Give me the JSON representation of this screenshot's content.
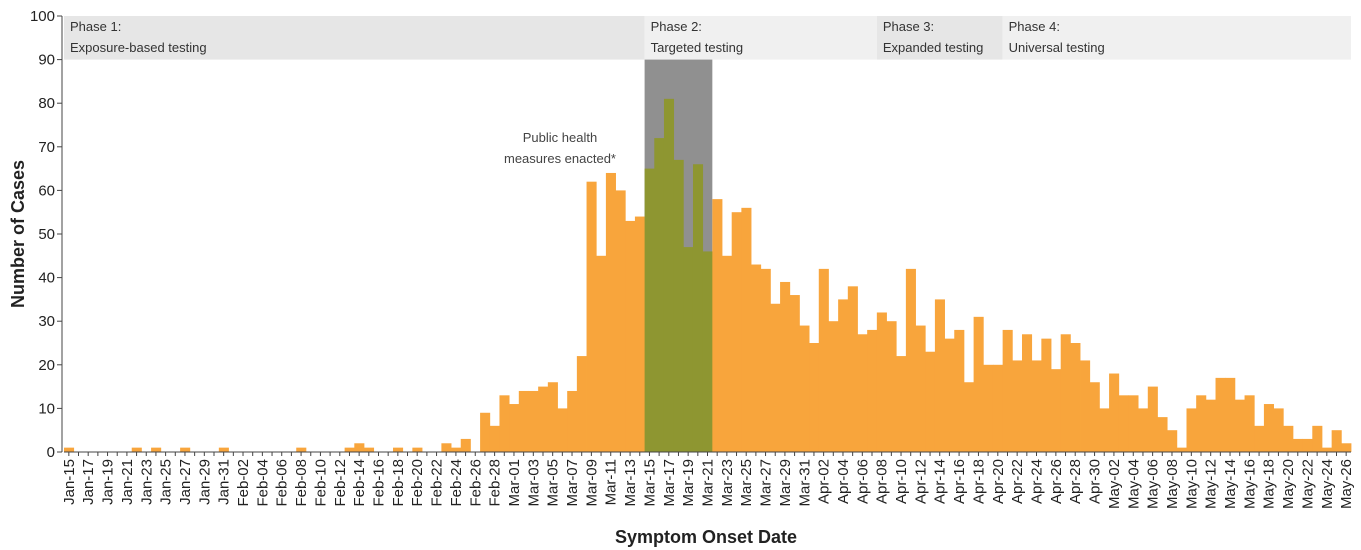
{
  "chart_data": {
    "type": "bar",
    "x_label": "Symptom Onset Date",
    "y_label": "Number of Cases",
    "color": "#f8a53c",
    "categories": [
      "Jan-15",
      null,
      "Jan-17",
      null,
      "Jan-19",
      null,
      "Jan-21",
      null,
      "Jan-23",
      null,
      "Jan-25",
      null,
      "Jan-27",
      null,
      "Jan-29",
      null,
      "Jan-31",
      null,
      "Feb-02",
      null,
      "Feb-04",
      null,
      "Feb-06",
      null,
      "Feb-08",
      null,
      "Feb-10",
      null,
      "Feb-12",
      null,
      "Feb-14",
      null,
      "Feb-16",
      null,
      "Feb-18",
      null,
      "Feb-20",
      null,
      "Feb-22",
      null,
      "Feb-24",
      null,
      "Feb-26",
      null,
      "Feb-28",
      null,
      "Mar-01",
      null,
      "Mar-03",
      null,
      "Mar-05",
      null,
      "Mar-07",
      null,
      "Mar-09",
      null,
      "Mar-11",
      null,
      "Mar-13",
      null,
      "Mar-15",
      null,
      "Mar-17",
      null,
      "Mar-19",
      null,
      "Mar-21",
      null,
      "Mar-23",
      null,
      "Mar-25",
      null,
      "Mar-27",
      null,
      "Mar-29",
      null,
      "Mar-31",
      null,
      "Apr-02",
      null,
      "Apr-04",
      null,
      "Apr-06",
      null,
      "Apr-08",
      null,
      "Apr-10",
      null,
      "Apr-12",
      null,
      "Apr-14",
      null,
      "Apr-16",
      null,
      "Apr-18",
      null,
      "Apr-20",
      null,
      "Apr-22",
      null,
      "Apr-24",
      null,
      "Apr-26",
      null,
      "Apr-28",
      null,
      "Apr-30",
      null,
      "May-02",
      null,
      "May-04",
      null,
      "May-06",
      null,
      "May-08",
      null,
      "May-10",
      null,
      "May-12",
      null,
      "May-14",
      null,
      "May-16",
      null,
      "May-18",
      null,
      "May-20",
      null,
      "May-22",
      null,
      "May-24",
      null,
      "May-26"
    ],
    "values": [
      1,
      0,
      0,
      0,
      0,
      0,
      0,
      1,
      0,
      1,
      0,
      0,
      1,
      0,
      0,
      0,
      1,
      0,
      0,
      0,
      0,
      0,
      0,
      0,
      1,
      0,
      0,
      0,
      0,
      1,
      2,
      1,
      0,
      0,
      1,
      0,
      1,
      0,
      0,
      2,
      1,
      3,
      0,
      9,
      6,
      13,
      11,
      14,
      14,
      15,
      16,
      10,
      14,
      22,
      62,
      45,
      64,
      60,
      53,
      54,
      65,
      72,
      81,
      67,
      47,
      66,
      46,
      58,
      45,
      55,
      56,
      43,
      42,
      34,
      39,
      36,
      29,
      25,
      42,
      30,
      35,
      38,
      27,
      28,
      32,
      30,
      22,
      42,
      29,
      23,
      35,
      26,
      28,
      16,
      31,
      20,
      20,
      28,
      21,
      27,
      21,
      26,
      19,
      27,
      25,
      21,
      16,
      10,
      18,
      13,
      13,
      10,
      15,
      8,
      5,
      1,
      10,
      13,
      12,
      17,
      17,
      12,
      13,
      6,
      11,
      10,
      6,
      3,
      3,
      6,
      1,
      5,
      2
    ],
    "ylim": [
      0,
      100
    ],
    "yticks": [
      0,
      10,
      20,
      30,
      40,
      50,
      60,
      70,
      80,
      90,
      100
    ],
    "phases": [
      {
        "name": "Phase 1:",
        "label": "Exposure-based testing"
      },
      {
        "name": "Phase 2:",
        "label": "Targeted testing"
      },
      {
        "name": "Phase 3:",
        "label": "Expanded testing"
      },
      {
        "name": "Phase 4:",
        "label": "Universal testing"
      }
    ],
    "annotation": [
      "Public health",
      "measures enacted*"
    ]
  }
}
